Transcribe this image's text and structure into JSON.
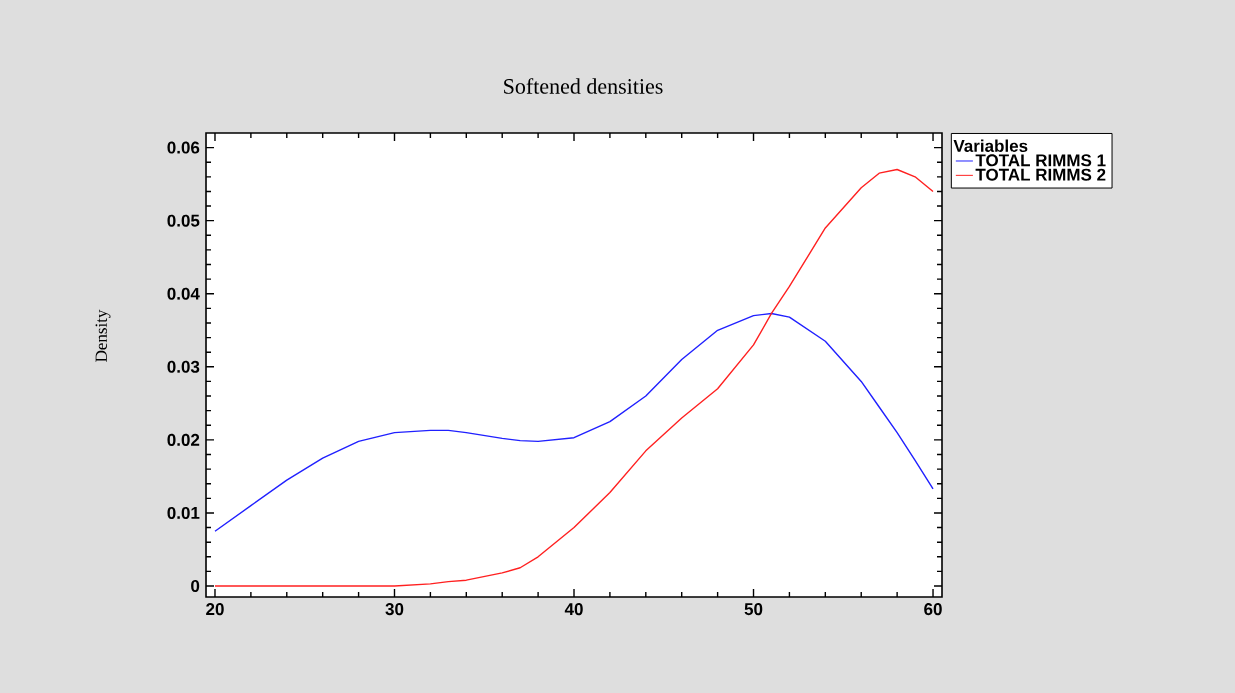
{
  "chart_data": {
    "type": "line",
    "title": "Softened densities",
    "ylabel": "Density",
    "legend_title": "Variables",
    "x": [
      20,
      22,
      24,
      26,
      28,
      30,
      32,
      33,
      34,
      36,
      37,
      38,
      40,
      42,
      44,
      46,
      48,
      50,
      51,
      52,
      54,
      56,
      57,
      58,
      59,
      60
    ],
    "series": [
      {
        "name": "TOTAL RIMMS 1",
        "color": "#2020ff",
        "values": [
          0.0075,
          0.011,
          0.0145,
          0.0175,
          0.0198,
          0.021,
          0.0213,
          0.0213,
          0.021,
          0.0202,
          0.0199,
          0.0198,
          0.0203,
          0.0225,
          0.026,
          0.031,
          0.035,
          0.037,
          0.0373,
          0.0368,
          0.0335,
          0.028,
          0.0245,
          0.021,
          0.0172,
          0.0133
        ]
      },
      {
        "name": "TOTAL RIMMS 2",
        "color": "#ff2020",
        "values": [
          0,
          0,
          0,
          0,
          0,
          0,
          0.0003,
          0.0006,
          0.0008,
          0.0018,
          0.0025,
          0.004,
          0.008,
          0.0128,
          0.0185,
          0.023,
          0.027,
          0.033,
          0.0373,
          0.041,
          0.049,
          0.0545,
          0.0565,
          0.057,
          0.056,
          0.054
        ]
      }
    ],
    "xlim": [
      19.5,
      60.5
    ],
    "ylim": [
      -0.0015,
      0.062
    ],
    "xticks": [
      20,
      30,
      40,
      50,
      60
    ],
    "yticks": [
      0,
      0.01,
      0.02,
      0.03,
      0.04,
      0.05,
      0.06
    ],
    "grid": false,
    "legend": "right",
    "marker": "none",
    "line_style": "solid"
  }
}
